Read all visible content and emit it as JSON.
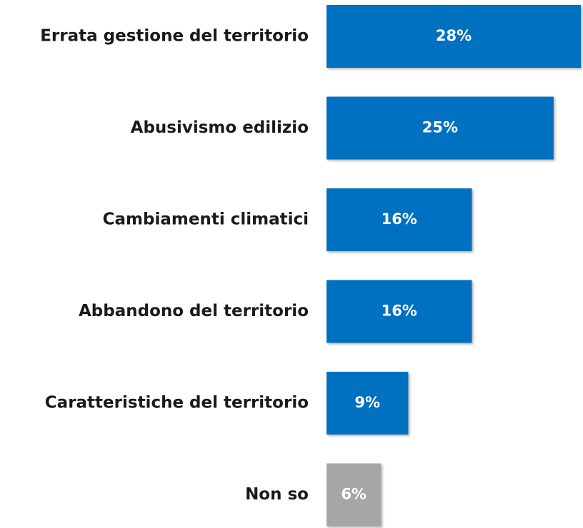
{
  "chart_data": {
    "type": "bar",
    "orientation": "horizontal",
    "categories": [
      "Errata gestione del territorio",
      "Abusivismo edilizio",
      "Cambiamenti climatici",
      "Abbandono del territorio",
      "Caratteristiche del territorio",
      "Non so"
    ],
    "values": [
      28,
      25,
      16,
      16,
      9,
      6
    ],
    "value_labels": [
      "28%",
      "25%",
      "16%",
      "16%",
      "9%",
      "6%"
    ],
    "colors": [
      "#0070c0",
      "#0070c0",
      "#0070c0",
      "#0070c0",
      "#0070c0",
      "#a6a6a6"
    ]
  }
}
